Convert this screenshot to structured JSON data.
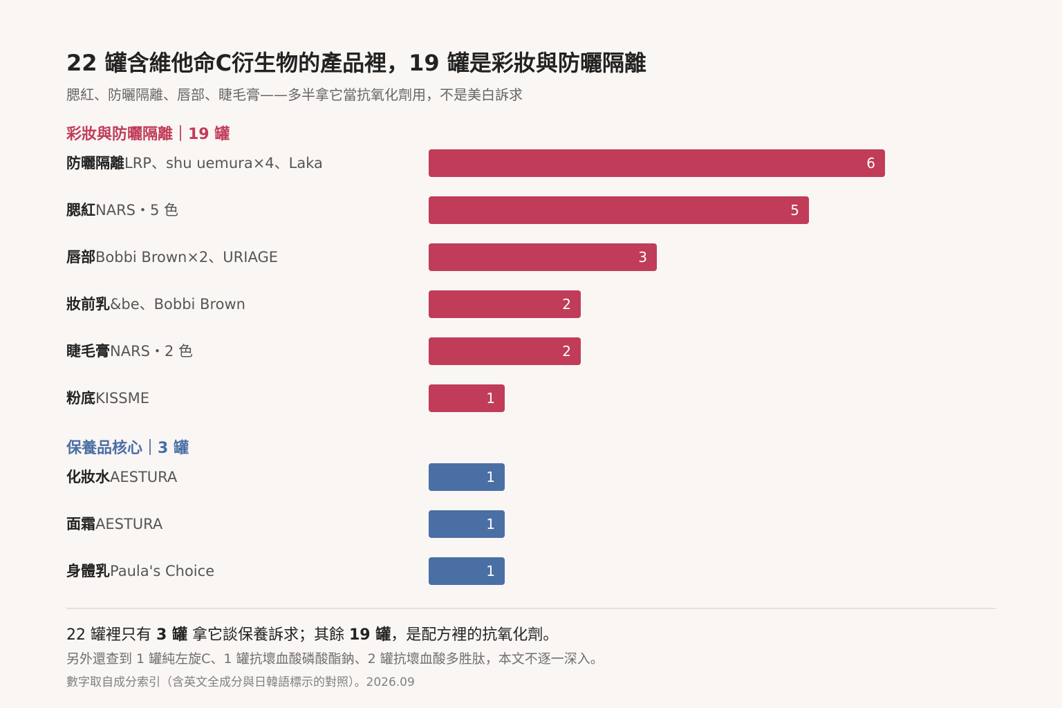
{
  "title": "22 罐含維他命C衍生物的產品裡，19 罐是彩妝與防曬隔離",
  "subtitle": "腮紅、防曬隔離、唇部、睫毛膏——多半拿它當抗氧化劑用，不是美白訴求",
  "colors": {
    "makeup": "#c03c58",
    "skincare": "#4a6fa5"
  },
  "chart_data": {
    "type": "bar",
    "orientation": "horizontal",
    "xlim": [
      0,
      6
    ],
    "groups": [
      {
        "heading": "彩妝與防曬隔離｜19 罐",
        "color": "#c03c58",
        "items": [
          {
            "category": "防曬隔離",
            "brands": "LRP、shu uemura×4、Laka",
            "value": 6
          },
          {
            "category": "腮紅",
            "brands": "NARS・5 色",
            "value": 5
          },
          {
            "category": "唇部",
            "brands": "Bobbi Brown×2、URIAGE",
            "value": 3
          },
          {
            "category": "妝前乳",
            "brands": "&be、Bobbi Brown",
            "value": 2
          },
          {
            "category": "睫毛膏",
            "brands": "NARS・2 色",
            "value": 2
          },
          {
            "category": "粉底",
            "brands": "KISSME",
            "value": 1
          }
        ]
      },
      {
        "heading": "保養品核心｜3 罐",
        "color": "#4a6fa5",
        "items": [
          {
            "category": "化妝水",
            "brands": "AESTURA",
            "value": 1
          },
          {
            "category": "面霜",
            "brands": "AESTURA",
            "value": 1
          },
          {
            "category": "身體乳",
            "brands": "Paula's Choice",
            "value": 1
          }
        ]
      }
    ]
  },
  "footer": {
    "summary_pre": "22 罐裡只有 ",
    "summary_bold1": "3 罐",
    "summary_mid": " 拿它談保養訴求；其餘 ",
    "summary_bold2": "19 罐",
    "summary_post": "，是配方裡的抗氧化劑。",
    "note": "另外還查到 1 罐純左旋C、1 罐抗壞血酸磷酸酯鈉、2 罐抗壞血酸多胜肽，本文不逐一深入。",
    "source": "數字取自成分索引（含英文全成分與日韓語標示的對照）。2026.09"
  }
}
